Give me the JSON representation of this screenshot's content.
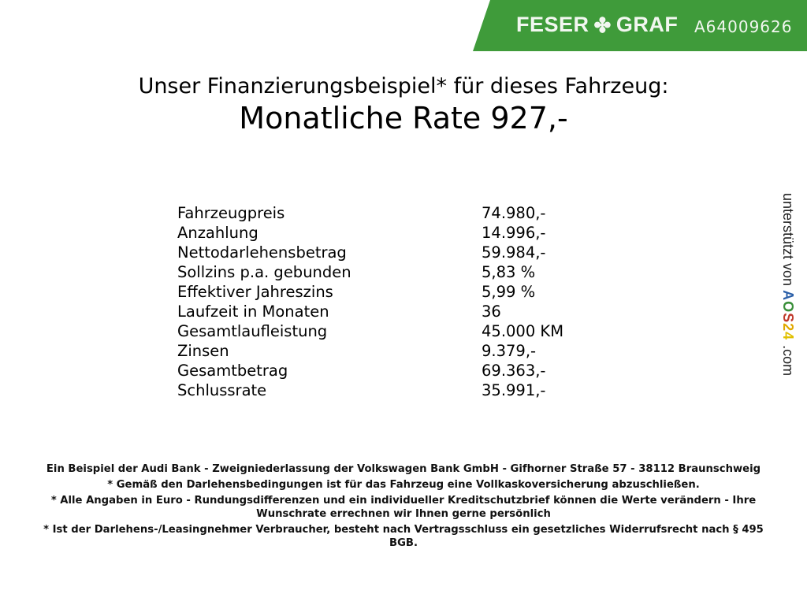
{
  "header": {
    "brand_left": "FESER",
    "brand_icon": "clover-icon",
    "brand_right": "GRAF",
    "vehicle_id": "A64009626",
    "banner_color": "#3f9b3a"
  },
  "title": {
    "line1": "Unser Finanzierungsbeispiel* für dieses Fahrzeug:",
    "line2": "Monatliche Rate 927,-"
  },
  "rows": [
    {
      "label": "Fahrzeugpreis",
      "value": "74.980,-"
    },
    {
      "label": "Anzahlung",
      "value": "14.996,-"
    },
    {
      "label": "Nettodarlehensbetrag",
      "value": "59.984,-"
    },
    {
      "label": "Sollzins p.a. gebunden",
      "value": "5,83 %"
    },
    {
      "label": "Effektiver Jahreszins",
      "value": "5,99 %"
    },
    {
      "label": "Laufzeit in Monaten",
      "value": "36"
    },
    {
      "label": "Gesamtlaufleistung",
      "value": "45.000 KM"
    },
    {
      "label": "Zinsen",
      "value": "9.379,-"
    },
    {
      "label": "Gesamtbetrag",
      "value": "69.363,-"
    },
    {
      "label": "Schlussrate",
      "value": "35.991,-"
    }
  ],
  "side": {
    "text": "unterstützt von",
    "logo_letters": [
      "A",
      "O",
      "S",
      "2",
      "4"
    ],
    "logo_colors": [
      "#2b5fa8",
      "#3a8f3a",
      "#c0392b",
      "#e0a800",
      "#e0c000"
    ],
    "suffix": ".com"
  },
  "footer": {
    "line1": "Ein Beispiel der Audi Bank - Zweigniederlassung der Volkswagen Bank GmbH - Gifhorner Straße 57 - 38112 Braunschweig",
    "line2": "* Gemäß den Darlehensbedingungen ist für das Fahrzeug eine Vollkaskoversicherung abzuschließen.",
    "line3": "* Alle Angaben in Euro - Rundungsdifferenzen und ein individueller Kreditschutzbrief können die Werte verändern - Ihre Wunschrate errechnen wir Ihnen gerne persönlich",
    "line4": "* Ist der Darlehens-/Leasingnehmer Verbraucher, besteht nach Vertragsschluss ein gesetzliches Widerrufsrecht nach § 495 BGB."
  }
}
